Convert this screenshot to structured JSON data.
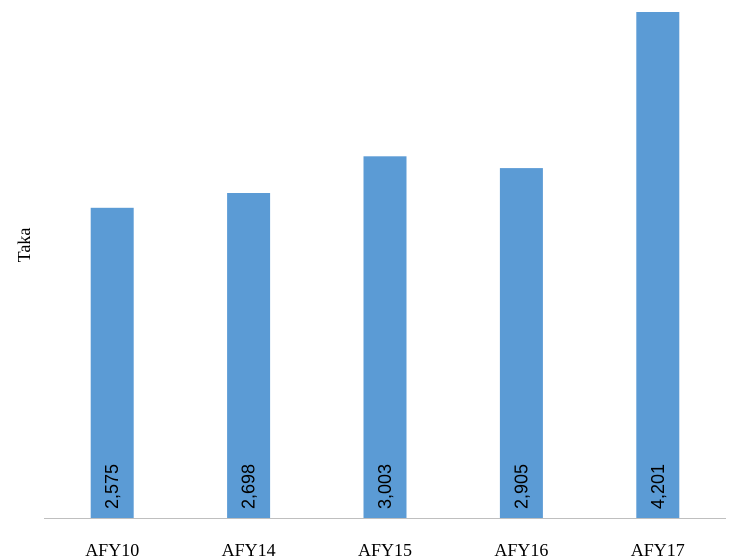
{
  "chart_data": {
    "type": "bar",
    "categories": [
      "AFY10",
      "AFY14",
      "AFY15",
      "AFY16",
      "AFY17"
    ],
    "values": [
      2575,
      2698,
      3003,
      2905,
      4201
    ],
    "value_labels": [
      "2,575",
      "2,698",
      "3,003",
      "2,905",
      "4,201"
    ],
    "title": "",
    "xlabel": "",
    "ylabel": "Taka",
    "bar_color": "#5B9BD5",
    "grid": false,
    "legend": "none"
  }
}
